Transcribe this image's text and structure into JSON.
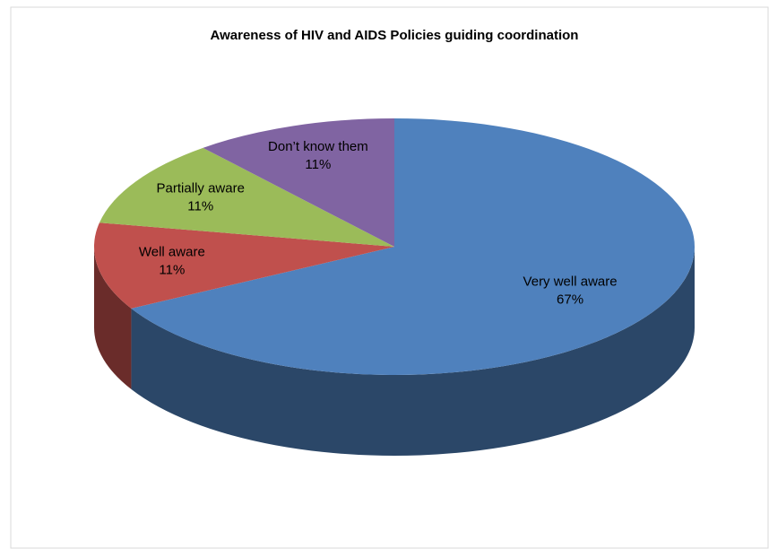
{
  "chart_data": {
    "type": "pie3d",
    "title": "Awareness of HIV and AIDS Policies  guiding coordination",
    "categories": [
      "Very well aware",
      "Well aware",
      "Partially aware",
      "Don’t know them"
    ],
    "values": [
      67,
      11,
      11,
      11
    ],
    "value_labels": [
      "67%",
      "11%",
      "11%",
      "11%"
    ],
    "colors": [
      "#4f81bd",
      "#c0504d",
      "#9bbb59",
      "#8064a2"
    ]
  }
}
